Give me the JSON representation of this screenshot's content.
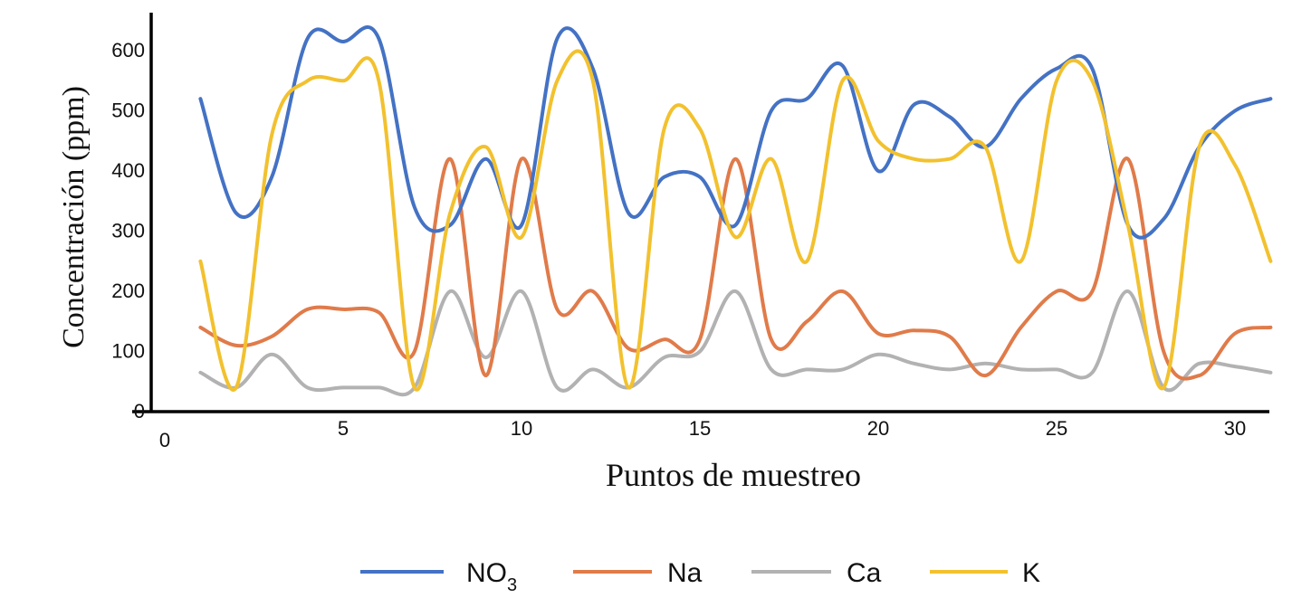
{
  "chart_data": {
    "type": "line",
    "title": "",
    "xlabel": "Puntos de muestreo",
    "ylabel": "Concentración (ppm)",
    "xlim": [
      0,
      31
    ],
    "ylim": [
      0,
      650
    ],
    "x_ticks": [
      0,
      5,
      10,
      15,
      20,
      25,
      30
    ],
    "y_ticks": [
      0,
      100,
      200,
      300,
      400,
      500,
      600
    ],
    "grid": false,
    "legend_position": "bottom",
    "x": [
      1,
      2,
      3,
      4,
      5,
      6,
      7,
      8,
      9,
      10,
      11,
      12,
      13,
      14,
      15,
      16,
      17,
      18,
      19,
      20,
      21,
      22,
      23,
      24,
      25,
      26,
      27,
      28,
      29,
      30,
      31
    ],
    "series": [
      {
        "name": "NO3",
        "label_main": "NO",
        "label_sub": "3",
        "color": "#4472c4",
        "values": [
          520,
          330,
          390,
          620,
          615,
          620,
          340,
          310,
          420,
          310,
          620,
          570,
          330,
          390,
          390,
          310,
          500,
          520,
          575,
          400,
          510,
          490,
          440,
          520,
          570,
          570,
          310,
          320,
          440,
          500,
          520
        ]
      },
      {
        "name": "Na",
        "label_main": "Na",
        "color": "#e07b4a",
        "values": [
          140,
          110,
          125,
          170,
          170,
          165,
          100,
          420,
          60,
          420,
          170,
          200,
          105,
          120,
          120,
          420,
          120,
          150,
          200,
          130,
          135,
          125,
          60,
          140,
          200,
          200,
          420,
          100,
          60,
          130,
          140
        ]
      },
      {
        "name": "Ca",
        "label_main": "Ca",
        "color": "#b2b2b2",
        "values": [
          65,
          40,
          95,
          40,
          40,
          40,
          40,
          200,
          90,
          200,
          40,
          70,
          40,
          90,
          100,
          200,
          70,
          70,
          70,
          95,
          80,
          70,
          80,
          70,
          70,
          65,
          200,
          40,
          80,
          75,
          65
        ]
      },
      {
        "name": "K",
        "label_main": "K",
        "color": "#f2c12e",
        "values": [
          250,
          40,
          460,
          550,
          550,
          550,
          40,
          330,
          440,
          290,
          550,
          550,
          40,
          470,
          470,
          290,
          420,
          250,
          550,
          450,
          420,
          420,
          440,
          250,
          550,
          550,
          310,
          40,
          440,
          410,
          250
        ]
      }
    ]
  }
}
